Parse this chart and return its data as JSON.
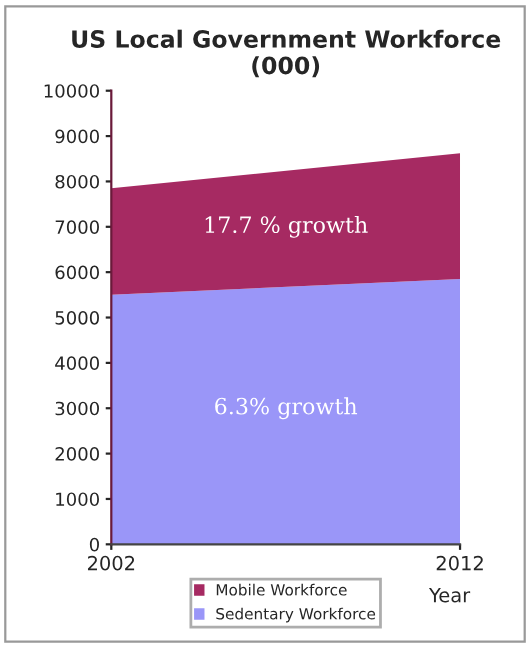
{
  "chart_data": {
    "type": "area",
    "title": "US Local Government Workforce\n(000)",
    "xlabel": "Year",
    "x": [
      2002,
      2012
    ],
    "stacked": true,
    "series": [
      {
        "name": "Sedentary Workforce",
        "color": "#9a96f8",
        "values": [
          5500,
          5850
        ]
      },
      {
        "name": "Mobile Workforce",
        "color": "#a62a62",
        "values": [
          2350,
          2770
        ]
      }
    ],
    "xlim": [
      2002,
      2012
    ],
    "xticks": [
      2002,
      2012
    ],
    "ylim": [
      0,
      10000
    ],
    "yticks": [
      0,
      1000,
      2000,
      3000,
      4000,
      5000,
      6000,
      7000,
      8000,
      9000,
      10000
    ],
    "annotations": [
      "17.7 % growth",
      "6.3% growth"
    ],
    "grid": false,
    "legend": "bottom"
  }
}
